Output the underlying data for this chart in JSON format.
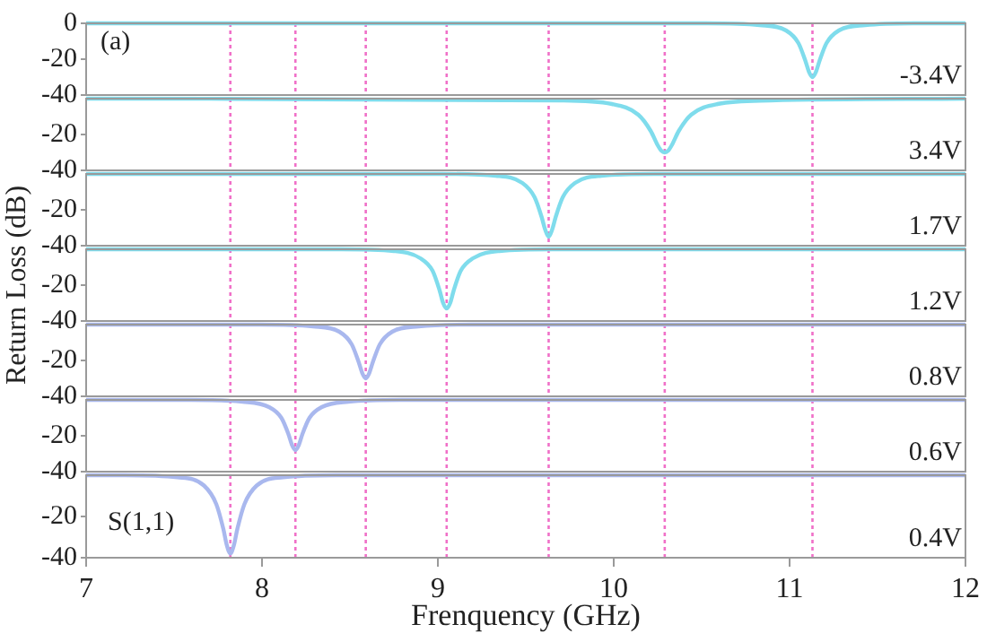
{
  "chart_data": [
    {
      "type": "line",
      "xlim": [
        7,
        12
      ],
      "ylim": [
        -40,
        0
      ],
      "yticks": [
        0,
        -20,
        -40
      ],
      "tick_labels": "y",
      "grid": false,
      "legend": false,
      "marker": "none",
      "annotations": [
        "-3.4V",
        "(a)"
      ],
      "series": [
        {
          "color": "#7fdcec",
          "x": [
            7,
            10.53,
            10.83,
            10.98,
            11.05,
            11.09,
            11.11,
            11.13,
            11.15,
            11.17,
            11.21,
            11.28,
            11.43,
            11.73,
            12
          ],
          "values": [
            0,
            0,
            -1,
            -4,
            -11,
            -21,
            -27,
            -30,
            -27,
            -21,
            -11,
            -4,
            -1,
            0,
            0
          ]
        }
      ],
      "ref_lines": [
        {
          "axis": "x",
          "value": 7.82,
          "color": "#f070c8",
          "line_style": "dotted"
        },
        {
          "axis": "x",
          "value": 8.19,
          "color": "#f070c8",
          "line_style": "dotted"
        },
        {
          "axis": "x",
          "value": 8.59,
          "color": "#f070c8",
          "line_style": "dotted"
        },
        {
          "axis": "x",
          "value": 9.05,
          "color": "#f070c8",
          "line_style": "dotted"
        },
        {
          "axis": "x",
          "value": 9.63,
          "color": "#f070c8",
          "line_style": "dotted"
        },
        {
          "axis": "x",
          "value": 10.29,
          "color": "#f070c8",
          "line_style": "dotted"
        },
        {
          "axis": "x",
          "value": 11.13,
          "color": "#f070c8",
          "line_style": "dotted"
        }
      ]
    },
    {
      "type": "line",
      "xlim": [
        7,
        12
      ],
      "ylim": [
        -40,
        0
      ],
      "yticks": [
        -20,
        -40
      ],
      "tick_labels": "y",
      "grid": false,
      "legend": false,
      "marker": "none",
      "annotations": [
        "3.4V"
      ],
      "series": [
        {
          "color": "#7fdcec",
          "x": [
            7,
            9.69,
            9.99,
            10.14,
            10.21,
            10.25,
            10.27,
            10.29,
            10.31,
            10.33,
            10.37,
            10.44,
            10.59,
            10.89,
            12
          ],
          "values": [
            0,
            -1,
            -3,
            -9,
            -18,
            -26,
            -29,
            -30,
            -29,
            -26,
            -18,
            -9,
            -3,
            -1,
            0
          ]
        }
      ],
      "ref_lines": [
        {
          "axis": "x",
          "value": 7.82,
          "color": "#f070c8",
          "line_style": "dotted"
        },
        {
          "axis": "x",
          "value": 8.19,
          "color": "#f070c8",
          "line_style": "dotted"
        },
        {
          "axis": "x",
          "value": 8.59,
          "color": "#f070c8",
          "line_style": "dotted"
        },
        {
          "axis": "x",
          "value": 9.05,
          "color": "#f070c8",
          "line_style": "dotted"
        },
        {
          "axis": "x",
          "value": 9.63,
          "color": "#f070c8",
          "line_style": "dotted"
        },
        {
          "axis": "x",
          "value": 10.29,
          "color": "#f070c8",
          "line_style": "dotted"
        },
        {
          "axis": "x",
          "value": 11.13,
          "color": "#f070c8",
          "line_style": "dotted"
        }
      ]
    },
    {
      "type": "line",
      "xlim": [
        7,
        12
      ],
      "ylim": [
        -40,
        0
      ],
      "yticks": [
        -20,
        -40
      ],
      "tick_labels": "y",
      "grid": false,
      "legend": false,
      "marker": "none",
      "annotations": [
        "1.7V"
      ],
      "series": [
        {
          "color": "#7fdcec",
          "x": [
            7,
            9.03,
            9.33,
            9.48,
            9.55,
            9.59,
            9.61,
            9.63,
            9.65,
            9.67,
            9.71,
            9.78,
            9.93,
            10.23,
            12
          ],
          "values": [
            0,
            0,
            -1,
            -5,
            -13,
            -24,
            -31,
            -35,
            -31,
            -24,
            -13,
            -5,
            -1,
            0,
            0
          ]
        }
      ],
      "ref_lines": [
        {
          "axis": "x",
          "value": 7.82,
          "color": "#f070c8",
          "line_style": "dotted"
        },
        {
          "axis": "x",
          "value": 8.19,
          "color": "#f070c8",
          "line_style": "dotted"
        },
        {
          "axis": "x",
          "value": 8.59,
          "color": "#f070c8",
          "line_style": "dotted"
        },
        {
          "axis": "x",
          "value": 9.05,
          "color": "#f070c8",
          "line_style": "dotted"
        },
        {
          "axis": "x",
          "value": 9.63,
          "color": "#f070c8",
          "line_style": "dotted"
        },
        {
          "axis": "x",
          "value": 10.29,
          "color": "#f070c8",
          "line_style": "dotted"
        },
        {
          "axis": "x",
          "value": 11.13,
          "color": "#f070c8",
          "line_style": "dotted"
        }
      ]
    },
    {
      "type": "line",
      "xlim": [
        7,
        12
      ],
      "ylim": [
        -40,
        0
      ],
      "yticks": [
        -20,
        -40
      ],
      "tick_labels": "y",
      "grid": false,
      "legend": false,
      "marker": "none",
      "ylabel": "Return Loss (dB)",
      "annotations": [
        "1.2V"
      ],
      "series": [
        {
          "color": "#7fdcec",
          "x": [
            7,
            8.45,
            8.75,
            8.9,
            8.97,
            9.01,
            9.03,
            9.05,
            9.07,
            9.09,
            9.13,
            9.2,
            9.35,
            9.65,
            12
          ],
          "values": [
            0,
            0,
            -1,
            -5,
            -12,
            -23,
            -30,
            -33,
            -30,
            -23,
            -12,
            -5,
            -1,
            0,
            0
          ]
        }
      ],
      "ref_lines": [
        {
          "axis": "x",
          "value": 7.82,
          "color": "#f070c8",
          "line_style": "dotted"
        },
        {
          "axis": "x",
          "value": 8.19,
          "color": "#f070c8",
          "line_style": "dotted"
        },
        {
          "axis": "x",
          "value": 8.59,
          "color": "#f070c8",
          "line_style": "dotted"
        },
        {
          "axis": "x",
          "value": 9.05,
          "color": "#f070c8",
          "line_style": "dotted"
        },
        {
          "axis": "x",
          "value": 9.63,
          "color": "#f070c8",
          "line_style": "dotted"
        },
        {
          "axis": "x",
          "value": 10.29,
          "color": "#f070c8",
          "line_style": "dotted"
        },
        {
          "axis": "x",
          "value": 11.13,
          "color": "#f070c8",
          "line_style": "dotted"
        }
      ]
    },
    {
      "type": "line",
      "xlim": [
        7,
        12
      ],
      "ylim": [
        -40,
        0
      ],
      "yticks": [
        -20,
        -40
      ],
      "tick_labels": "y",
      "grid": false,
      "legend": false,
      "marker": "none",
      "annotations": [
        "0.8V"
      ],
      "series": [
        {
          "color": "#a9b8ee",
          "x": [
            7,
            7.99,
            8.29,
            8.44,
            8.51,
            8.55,
            8.57,
            8.59,
            8.61,
            8.63,
            8.67,
            8.74,
            8.89,
            9.19,
            12
          ],
          "values": [
            0,
            0,
            -1,
            -4,
            -11,
            -21,
            -27,
            -30,
            -27,
            -21,
            -11,
            -4,
            -1,
            0,
            0
          ]
        }
      ],
      "ref_lines": [
        {
          "axis": "x",
          "value": 7.82,
          "color": "#f070c8",
          "line_style": "dotted"
        },
        {
          "axis": "x",
          "value": 8.19,
          "color": "#f070c8",
          "line_style": "dotted"
        },
        {
          "axis": "x",
          "value": 8.59,
          "color": "#f070c8",
          "line_style": "dotted"
        },
        {
          "axis": "x",
          "value": 9.05,
          "color": "#f070c8",
          "line_style": "dotted"
        },
        {
          "axis": "x",
          "value": 9.63,
          "color": "#f070c8",
          "line_style": "dotted"
        },
        {
          "axis": "x",
          "value": 10.29,
          "color": "#f070c8",
          "line_style": "dotted"
        },
        {
          "axis": "x",
          "value": 11.13,
          "color": "#f070c8",
          "line_style": "dotted"
        }
      ]
    },
    {
      "type": "line",
      "xlim": [
        7,
        12
      ],
      "ylim": [
        -40,
        0
      ],
      "yticks": [
        -20,
        -40
      ],
      "tick_labels": "y",
      "grid": false,
      "legend": false,
      "marker": "none",
      "annotations": [
        "0.6V"
      ],
      "series": [
        {
          "color": "#a9b8ee",
          "x": [
            7,
            7.59,
            7.89,
            8.04,
            8.11,
            8.15,
            8.17,
            8.19,
            8.21,
            8.23,
            8.27,
            8.34,
            8.49,
            8.79,
            12
          ],
          "values": [
            0,
            0,
            -1,
            -4,
            -10,
            -19,
            -25,
            -28,
            -25,
            -19,
            -10,
            -4,
            -1,
            0,
            0
          ]
        }
      ],
      "ref_lines": [
        {
          "axis": "x",
          "value": 7.82,
          "color": "#f070c8",
          "line_style": "dotted"
        },
        {
          "axis": "x",
          "value": 8.19,
          "color": "#f070c8",
          "line_style": "dotted"
        },
        {
          "axis": "x",
          "value": 8.59,
          "color": "#f070c8",
          "line_style": "dotted"
        },
        {
          "axis": "x",
          "value": 9.05,
          "color": "#f070c8",
          "line_style": "dotted"
        },
        {
          "axis": "x",
          "value": 9.63,
          "color": "#f070c8",
          "line_style": "dotted"
        },
        {
          "axis": "x",
          "value": 10.29,
          "color": "#f070c8",
          "line_style": "dotted"
        },
        {
          "axis": "x",
          "value": 11.13,
          "color": "#f070c8",
          "line_style": "dotted"
        }
      ]
    },
    {
      "type": "line",
      "xlim": [
        7,
        12
      ],
      "xticks": [
        7,
        8,
        9,
        10,
        11,
        12
      ],
      "ylim": [
        -40,
        0
      ],
      "yticks": [
        -20,
        -40
      ],
      "grid": false,
      "legend": false,
      "marker": "none",
      "xlabel": "Frenquency (GHz)",
      "annotations": [
        "0.4V",
        "S(1,1)"
      ],
      "series": [
        {
          "color": "#a9b8ee",
          "x": [
            7,
            7.22,
            7.52,
            7.67,
            7.74,
            7.78,
            7.8,
            7.82,
            7.84,
            7.86,
            7.9,
            7.97,
            8.12,
            8.42,
            12
          ],
          "values": [
            0,
            0,
            -1,
            -5,
            -14,
            -26,
            -34,
            -38,
            -34,
            -26,
            -14,
            -5,
            -1,
            0,
            0
          ]
        }
      ],
      "ref_lines": [
        {
          "axis": "x",
          "value": 7.82,
          "color": "#f070c8",
          "line_style": "dotted"
        },
        {
          "axis": "x",
          "value": 8.19,
          "color": "#f070c8",
          "line_style": "dotted"
        },
        {
          "axis": "x",
          "value": 8.59,
          "color": "#f070c8",
          "line_style": "dotted"
        },
        {
          "axis": "x",
          "value": 9.05,
          "color": "#f070c8",
          "line_style": "dotted"
        },
        {
          "axis": "x",
          "value": 9.63,
          "color": "#f070c8",
          "line_style": "dotted"
        },
        {
          "axis": "x",
          "value": 10.29,
          "color": "#f070c8",
          "line_style": "dotted"
        },
        {
          "axis": "x",
          "value": 11.13,
          "color": "#f070c8",
          "line_style": "dotted"
        }
      ]
    }
  ]
}
